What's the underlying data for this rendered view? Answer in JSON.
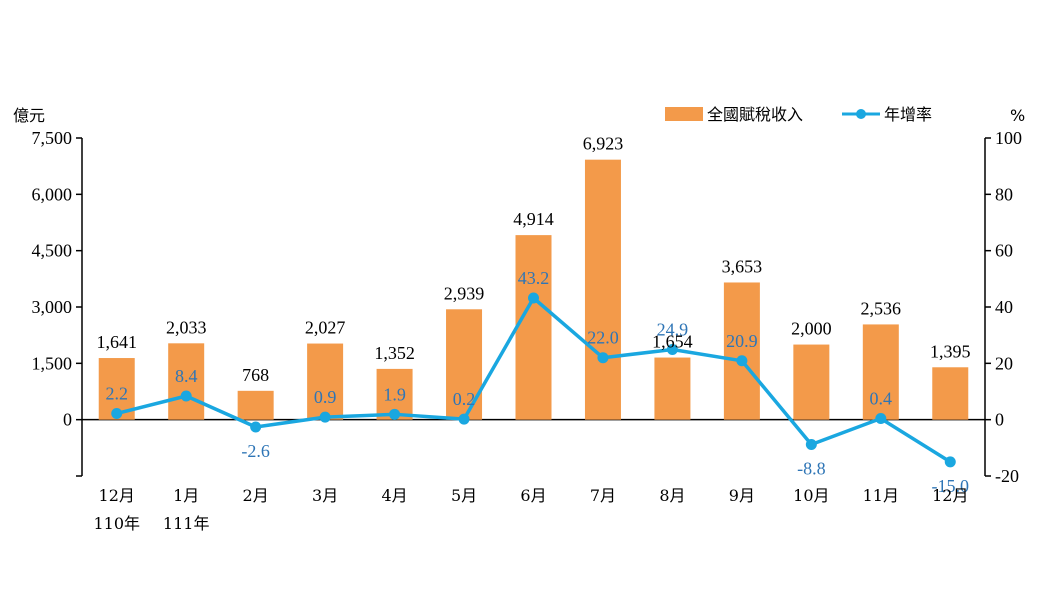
{
  "chart_data": {
    "type": "bar+line",
    "categories": [
      "12月",
      "1月",
      "2月",
      "3月",
      "4月",
      "5月",
      "6月",
      "7月",
      "8月",
      "9月",
      "10月",
      "11月",
      "12月"
    ],
    "category_sublabels": [
      "110年",
      "111年",
      "",
      "",
      "",
      "",
      "",
      "",
      "",
      "",
      "",
      "",
      ""
    ],
    "series": [
      {
        "name": "全國賦稅收入",
        "type": "bar",
        "axis": "left",
        "color": "#F39A4A",
        "values": [
          1641,
          2033,
          768,
          2027,
          1352,
          2939,
          4914,
          6923,
          1654,
          3653,
          2000,
          2536,
          1395
        ],
        "labels": [
          "1,641",
          "2,033",
          "768",
          "2,027",
          "1,352",
          "2,939",
          "4,914",
          "6,923",
          "1,654",
          "3,653",
          "2,000",
          "2,536",
          "1,395"
        ]
      },
      {
        "name": "年增率",
        "type": "line",
        "axis": "right",
        "color": "#1AA7E0",
        "values": [
          2.2,
          8.4,
          -2.6,
          0.9,
          1.9,
          0.2,
          43.2,
          22.0,
          24.9,
          20.9,
          -8.8,
          0.4,
          -15.0
        ],
        "labels": [
          "2.2",
          "8.4",
          "-2.6",
          "0.9",
          "1.9",
          "0.2",
          "43.2",
          "22.0",
          "24.9",
          "20.9",
          "-8.8",
          "0.4",
          "-15.0"
        ],
        "label_color": "#2E75B6"
      }
    ],
    "y_left": {
      "unit": "億元",
      "range": [
        -1500,
        7500
      ],
      "ticks": [
        0,
        1500,
        3000,
        4500,
        6000,
        7500
      ],
      "tick_labels": [
        "0",
        "1,500",
        "3,000",
        "4,500",
        "6,000",
        "7,500"
      ]
    },
    "y_right": {
      "unit": "%",
      "range": [
        -20,
        100
      ],
      "ticks": [
        -20,
        0,
        20,
        40,
        60,
        80,
        100
      ],
      "tick_labels": [
        "-20",
        "0",
        "20",
        "40",
        "60",
        "80",
        "100"
      ]
    },
    "grid": false,
    "legend": "top-right"
  }
}
